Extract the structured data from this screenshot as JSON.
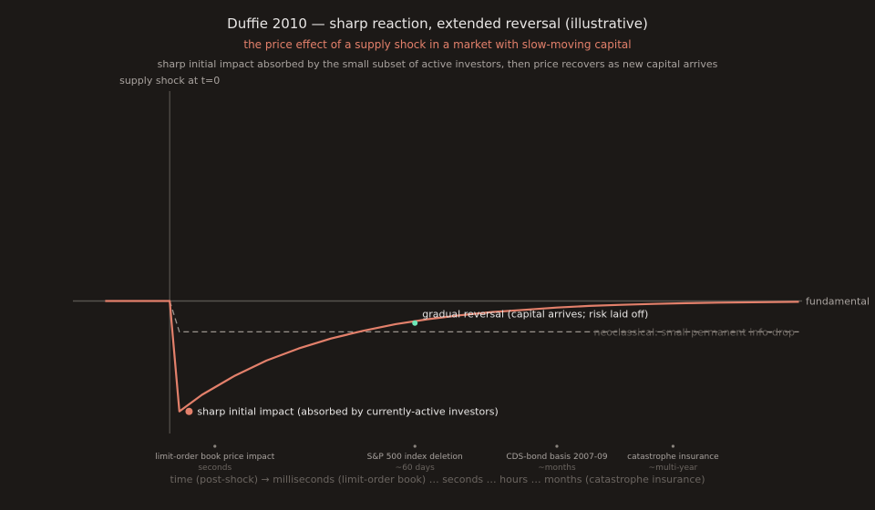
{
  "chart_data": {
    "type": "line",
    "title": "Duffie 2010 — sharp reaction, extended reversal (illustrative)",
    "subtitle": "the price effect of a supply shock in a market with slow-moving capital",
    "description": "sharp initial impact absorbed by the small subset of active investors, then price recovers as new capital arrives",
    "xlabel": "time (post-shock) → milliseconds (limit-order book) … seconds … hours … months (catastrophe insurance)",
    "shock_label": "supply shock at t=0",
    "fundamental_label": "fundamental",
    "neoclassical_label": "neoclassical: small permanent info-drop",
    "impact_label": "sharp initial impact (absorbed by currently-active investors)",
    "reversal_label": "gradual reversal (capital arrives; risk laid off)",
    "series": [
      {
        "name": "price",
        "color": "#e3806b",
        "x": [
          -1,
          0,
          0.15,
          0.5,
          1,
          1.5,
          2,
          2.5,
          3,
          3.5,
          4,
          4.5,
          5,
          5.5,
          6,
          6.5,
          7,
          7.5,
          8,
          8.5,
          9.75
        ],
        "y": [
          0,
          0,
          -1,
          -0.85,
          -0.68,
          -0.54,
          -0.43,
          -0.34,
          -0.27,
          -0.21,
          -0.165,
          -0.13,
          -0.1,
          -0.08,
          -0.06,
          -0.045,
          -0.035,
          -0.027,
          -0.02,
          -0.015,
          -0.008
        ]
      },
      {
        "color": "#9a948e",
        "x": [
          0,
          0.15,
          9.75
        ],
        "y": [
          0,
          -0.28,
          -0.28
        ]
      }
    ],
    "impact_point": {
      "x": 0.3,
      "y": -1
    },
    "reversal_point": {
      "x": 3.8,
      "y": -0.2
    },
    "fundamental_level": 0,
    "xlim": [
      -1.5,
      9.8
    ],
    "ylim": [
      -1.2,
      1.9
    ],
    "markets": [
      {
        "name": "limit-order book price impact",
        "horizon": "seconds",
        "x": 0.7
      },
      {
        "name": "S&P 500 index deletion",
        "horizon": "~60 days",
        "x": 3.8
      },
      {
        "name": "CDS-bond basis 2007-09",
        "horizon": "~months",
        "x": 6.0
      },
      {
        "name": "catastrophe insurance",
        "horizon": "~multi-year",
        "x": 7.8
      }
    ],
    "colors": {
      "background": "#1c1917",
      "price": "#e3806b",
      "fundamental": "#57534e",
      "neoclassical": "#9a948e",
      "reversal_dot": "#6ee7b7",
      "text": "#e7e5e4",
      "muted": "#a8a29e"
    }
  }
}
